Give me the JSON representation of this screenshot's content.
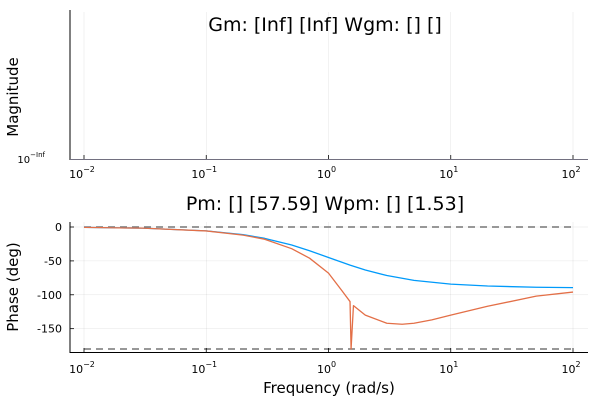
{
  "chart_data": [
    {
      "type": "line",
      "title": "Gm: [Inf] [Inf]  Wgm: [] []",
      "xlabel": "",
      "ylabel": "Magnitude",
      "x_scale": "log",
      "xlim": [
        0.01,
        100
      ],
      "x_ticks": [
        {
          "base": "10",
          "exp": "−2"
        },
        {
          "base": "10",
          "exp": "−1"
        },
        {
          "base": "10",
          "exp": "0"
        },
        {
          "base": "10",
          "exp": "1"
        },
        {
          "base": "10",
          "exp": "2"
        }
      ],
      "y_ticks": [
        {
          "base": "10",
          "exp": "−Inf"
        }
      ],
      "grid": true,
      "series": []
    },
    {
      "type": "line",
      "title": "Pm: [] [57.59]  Wpm: [] [1.53]",
      "xlabel": "Frequency (rad/s)",
      "ylabel": "Phase (deg)",
      "x_scale": "log",
      "xlim": [
        0.01,
        100
      ],
      "ylim": [
        -185,
        5
      ],
      "x_ticks": [
        {
          "base": "10",
          "exp": "−2"
        },
        {
          "base": "10",
          "exp": "−1"
        },
        {
          "base": "10",
          "exp": "0"
        },
        {
          "base": "10",
          "exp": "1"
        },
        {
          "base": "10",
          "exp": "2"
        }
      ],
      "y_ticks": [
        "0",
        "-50",
        "-100",
        "-150"
      ],
      "y_tick_values": [
        0,
        -50,
        -100,
        -150
      ],
      "grid": true,
      "reference_lines": [
        0,
        -180
      ],
      "series": [
        {
          "color": "#009AFA",
          "x": [
            0.01,
            0.03,
            0.1,
            0.2,
            0.3,
            0.5,
            0.7,
            1,
            1.5,
            2,
            3,
            5,
            10,
            20,
            50,
            100
          ],
          "y": [
            -0.6,
            -1.7,
            -5.7,
            -11.3,
            -16.7,
            -26.6,
            -35,
            -45,
            -56.3,
            -63.4,
            -71.6,
            -78.7,
            -84.3,
            -87.1,
            -88.9,
            -89.4
          ]
        },
        {
          "color": "#E36F47",
          "x": [
            0.01,
            0.03,
            0.1,
            0.2,
            0.3,
            0.5,
            0.7,
            1,
            1.3,
            1.5,
            1.53,
            1.6,
            2,
            3,
            4,
            5,
            7,
            10,
            20,
            50,
            100
          ],
          "y": [
            -0.6,
            -1.7,
            -5.8,
            -12,
            -18,
            -32,
            -46,
            -68,
            -95,
            -110,
            -180,
            -116,
            -130,
            -142,
            -143.5,
            -142,
            -137,
            -130,
            -117,
            -102,
            -96
          ]
        }
      ]
    }
  ]
}
